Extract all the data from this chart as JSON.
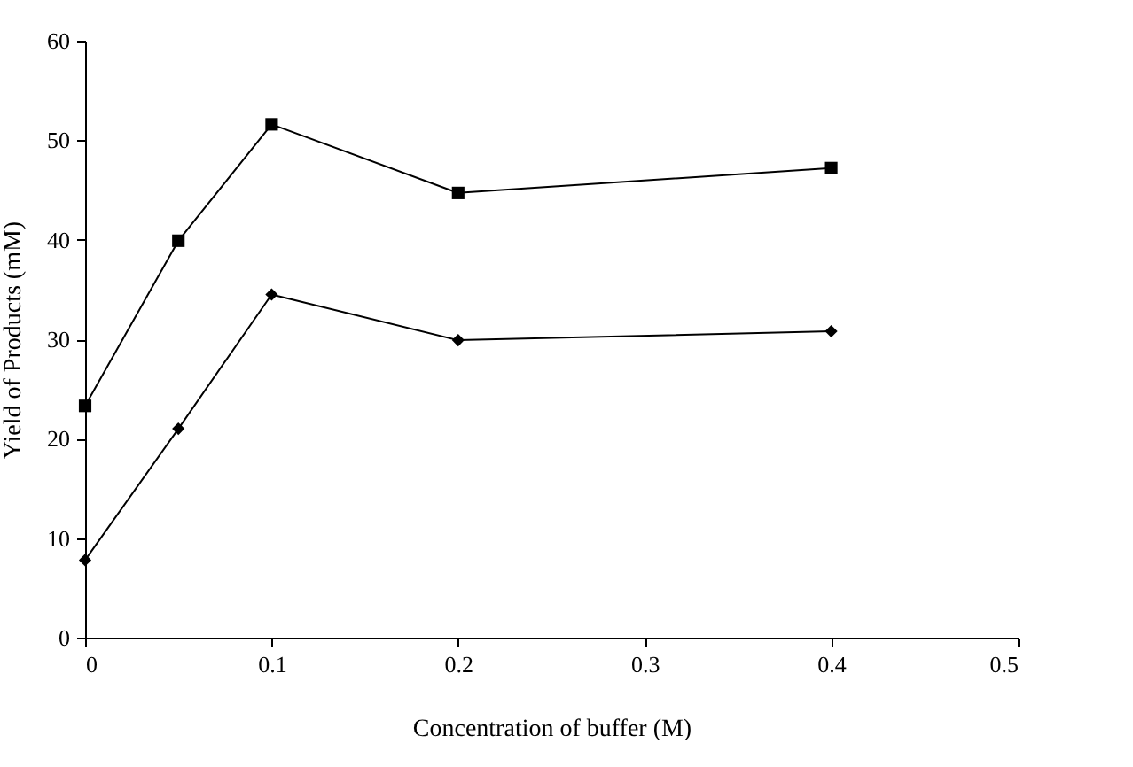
{
  "chart_data": {
    "type": "line",
    "xlabel": "Concentration of buffer (M)",
    "ylabel": "Yield of Products (mM)",
    "x": [
      0,
      0.05,
      0.1,
      0.2,
      0.4
    ],
    "series": [
      {
        "color": "#000000",
        "marker": "square",
        "values": [
          23.3,
          39.9,
          51.6,
          44.7,
          47.2
        ]
      },
      {
        "color": "#000000",
        "marker": "diamond",
        "values": [
          7.8,
          21,
          34.5,
          29.9,
          30.8
        ]
      }
    ],
    "xlim": [
      0,
      0.5
    ],
    "xticks": [
      0,
      0.1,
      0.2,
      0.3,
      0.4,
      0.5
    ],
    "ylim": [
      0,
      60
    ],
    "yticks": [
      0,
      10,
      20,
      30,
      40,
      50,
      60
    ],
    "grid": false
  }
}
